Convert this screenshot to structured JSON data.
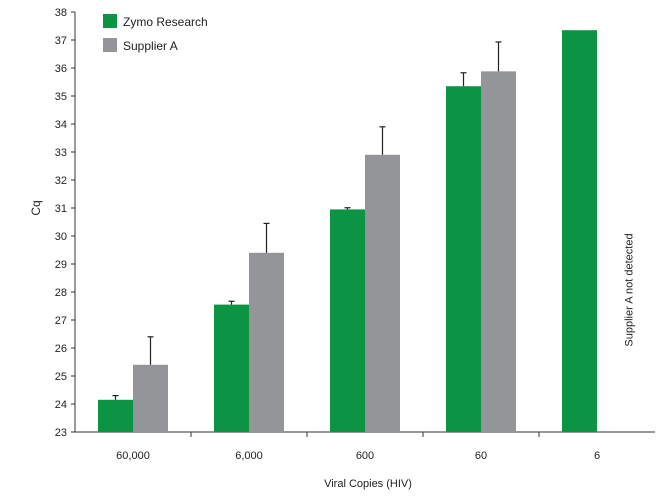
{
  "chart_data": {
    "type": "bar",
    "categories": [
      "60,000",
      "6,000",
      "600",
      "60",
      "6"
    ],
    "series": [
      {
        "name": "Zymo Research",
        "color": "#0b9444",
        "values": [
          24.15,
          27.55,
          30.95,
          35.35,
          37.35
        ],
        "errors": [
          0.15,
          0.12,
          0.06,
          0.48,
          null
        ]
      },
      {
        "name": "Supplier A",
        "color": "#939598",
        "values": [
          25.4,
          29.4,
          32.9,
          35.88,
          null
        ],
        "errors": [
          1.0,
          1.05,
          1.0,
          1.05,
          null
        ]
      }
    ],
    "xlabel": "Viral Copies (HIV)",
    "ylabel": "Cq",
    "ylim": [
      23,
      38
    ],
    "ytick_step": 1,
    "legend_position": "top-left",
    "grid": false,
    "annotations": [
      {
        "category": "6",
        "text": "Supplier A not detected"
      }
    ]
  }
}
